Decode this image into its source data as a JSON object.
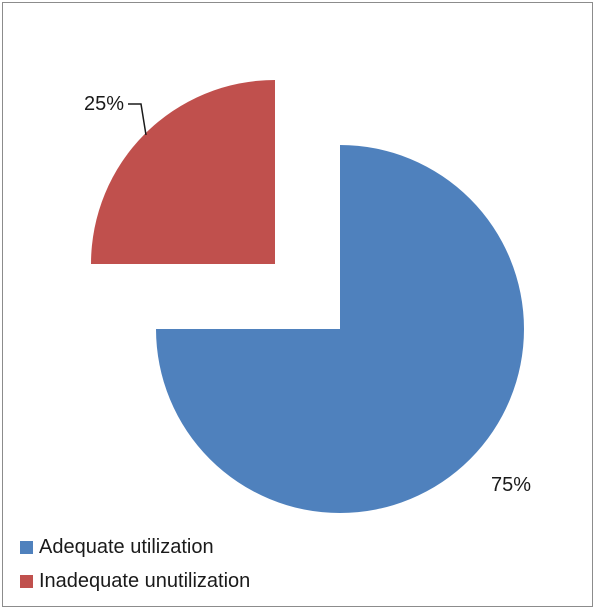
{
  "chart_data": {
    "type": "pie",
    "title": "",
    "slices": [
      {
        "name": "Adequate utilization",
        "value": 75,
        "label": "75%",
        "color": "#4f81bd",
        "exploded": false
      },
      {
        "name": "Inadequate unutilization",
        "value": 25,
        "label": "25%",
        "color": "#c0504d",
        "exploded": true
      }
    ],
    "legend_position": "bottom-left"
  }
}
